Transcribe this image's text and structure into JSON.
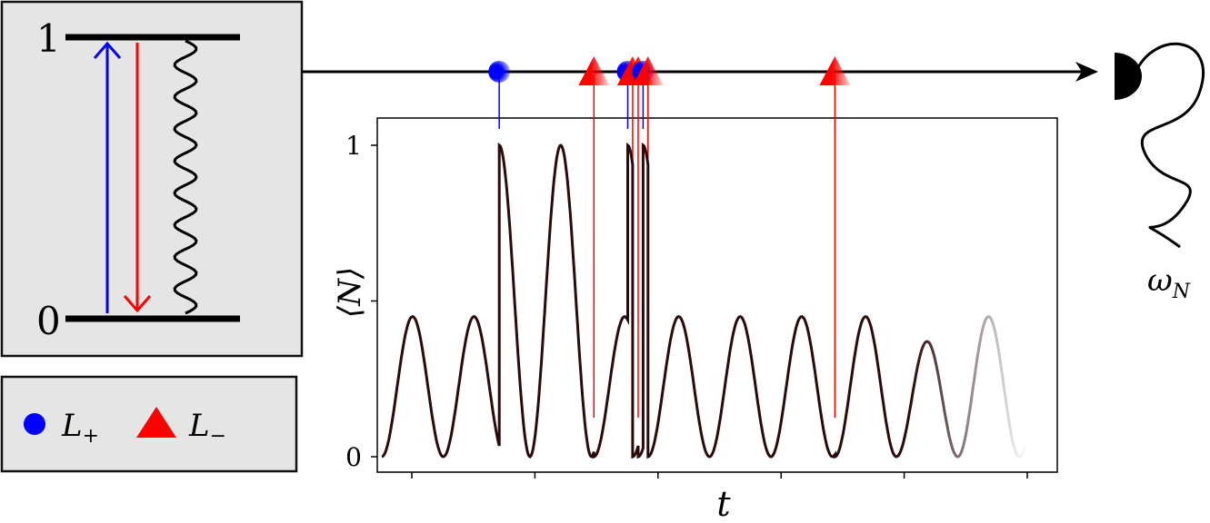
{
  "level_diagram": {
    "upper_level_label": "1",
    "lower_level_label": "0"
  },
  "legend": {
    "items": [
      {
        "marker": "circle",
        "color": "#0000ff",
        "label_base": "L",
        "label_sub": "+"
      },
      {
        "marker": "triangle",
        "color": "#ff0000",
        "label_base": "L",
        "label_sub": "−"
      }
    ]
  },
  "detector": {
    "frequency_base": "ω",
    "frequency_sub": "N"
  },
  "colors": {
    "plus": "#0000ff",
    "minus": "#ff0000",
    "curve": "#2a0a0a",
    "panel_bg": "#e5e5e5"
  },
  "chart_data": {
    "type": "line",
    "xlabel": "t",
    "ylabel": "⟨N⟩",
    "ylim": [
      0,
      1
    ],
    "yticks": [
      "0",
      "1"
    ],
    "grid": false,
    "series": [
      {
        "period": 0.1,
        "amplitude_after_plus": 1.0,
        "amplitude_after_minus": 0.45
      }
    ],
    "jumps": [
      {
        "t": 0.191,
        "type": "plus"
      },
      {
        "t": 0.345,
        "type": "minus"
      },
      {
        "t": 0.4,
        "type": "plus"
      },
      {
        "t": 0.408,
        "type": "minus"
      },
      {
        "t": 0.417,
        "type": "minus"
      },
      {
        "t": 0.425,
        "type": "plus"
      },
      {
        "t": 0.433,
        "type": "minus"
      },
      {
        "t": 0.737,
        "type": "minus"
      }
    ],
    "xlim": [
      0,
      1.05
    ]
  }
}
